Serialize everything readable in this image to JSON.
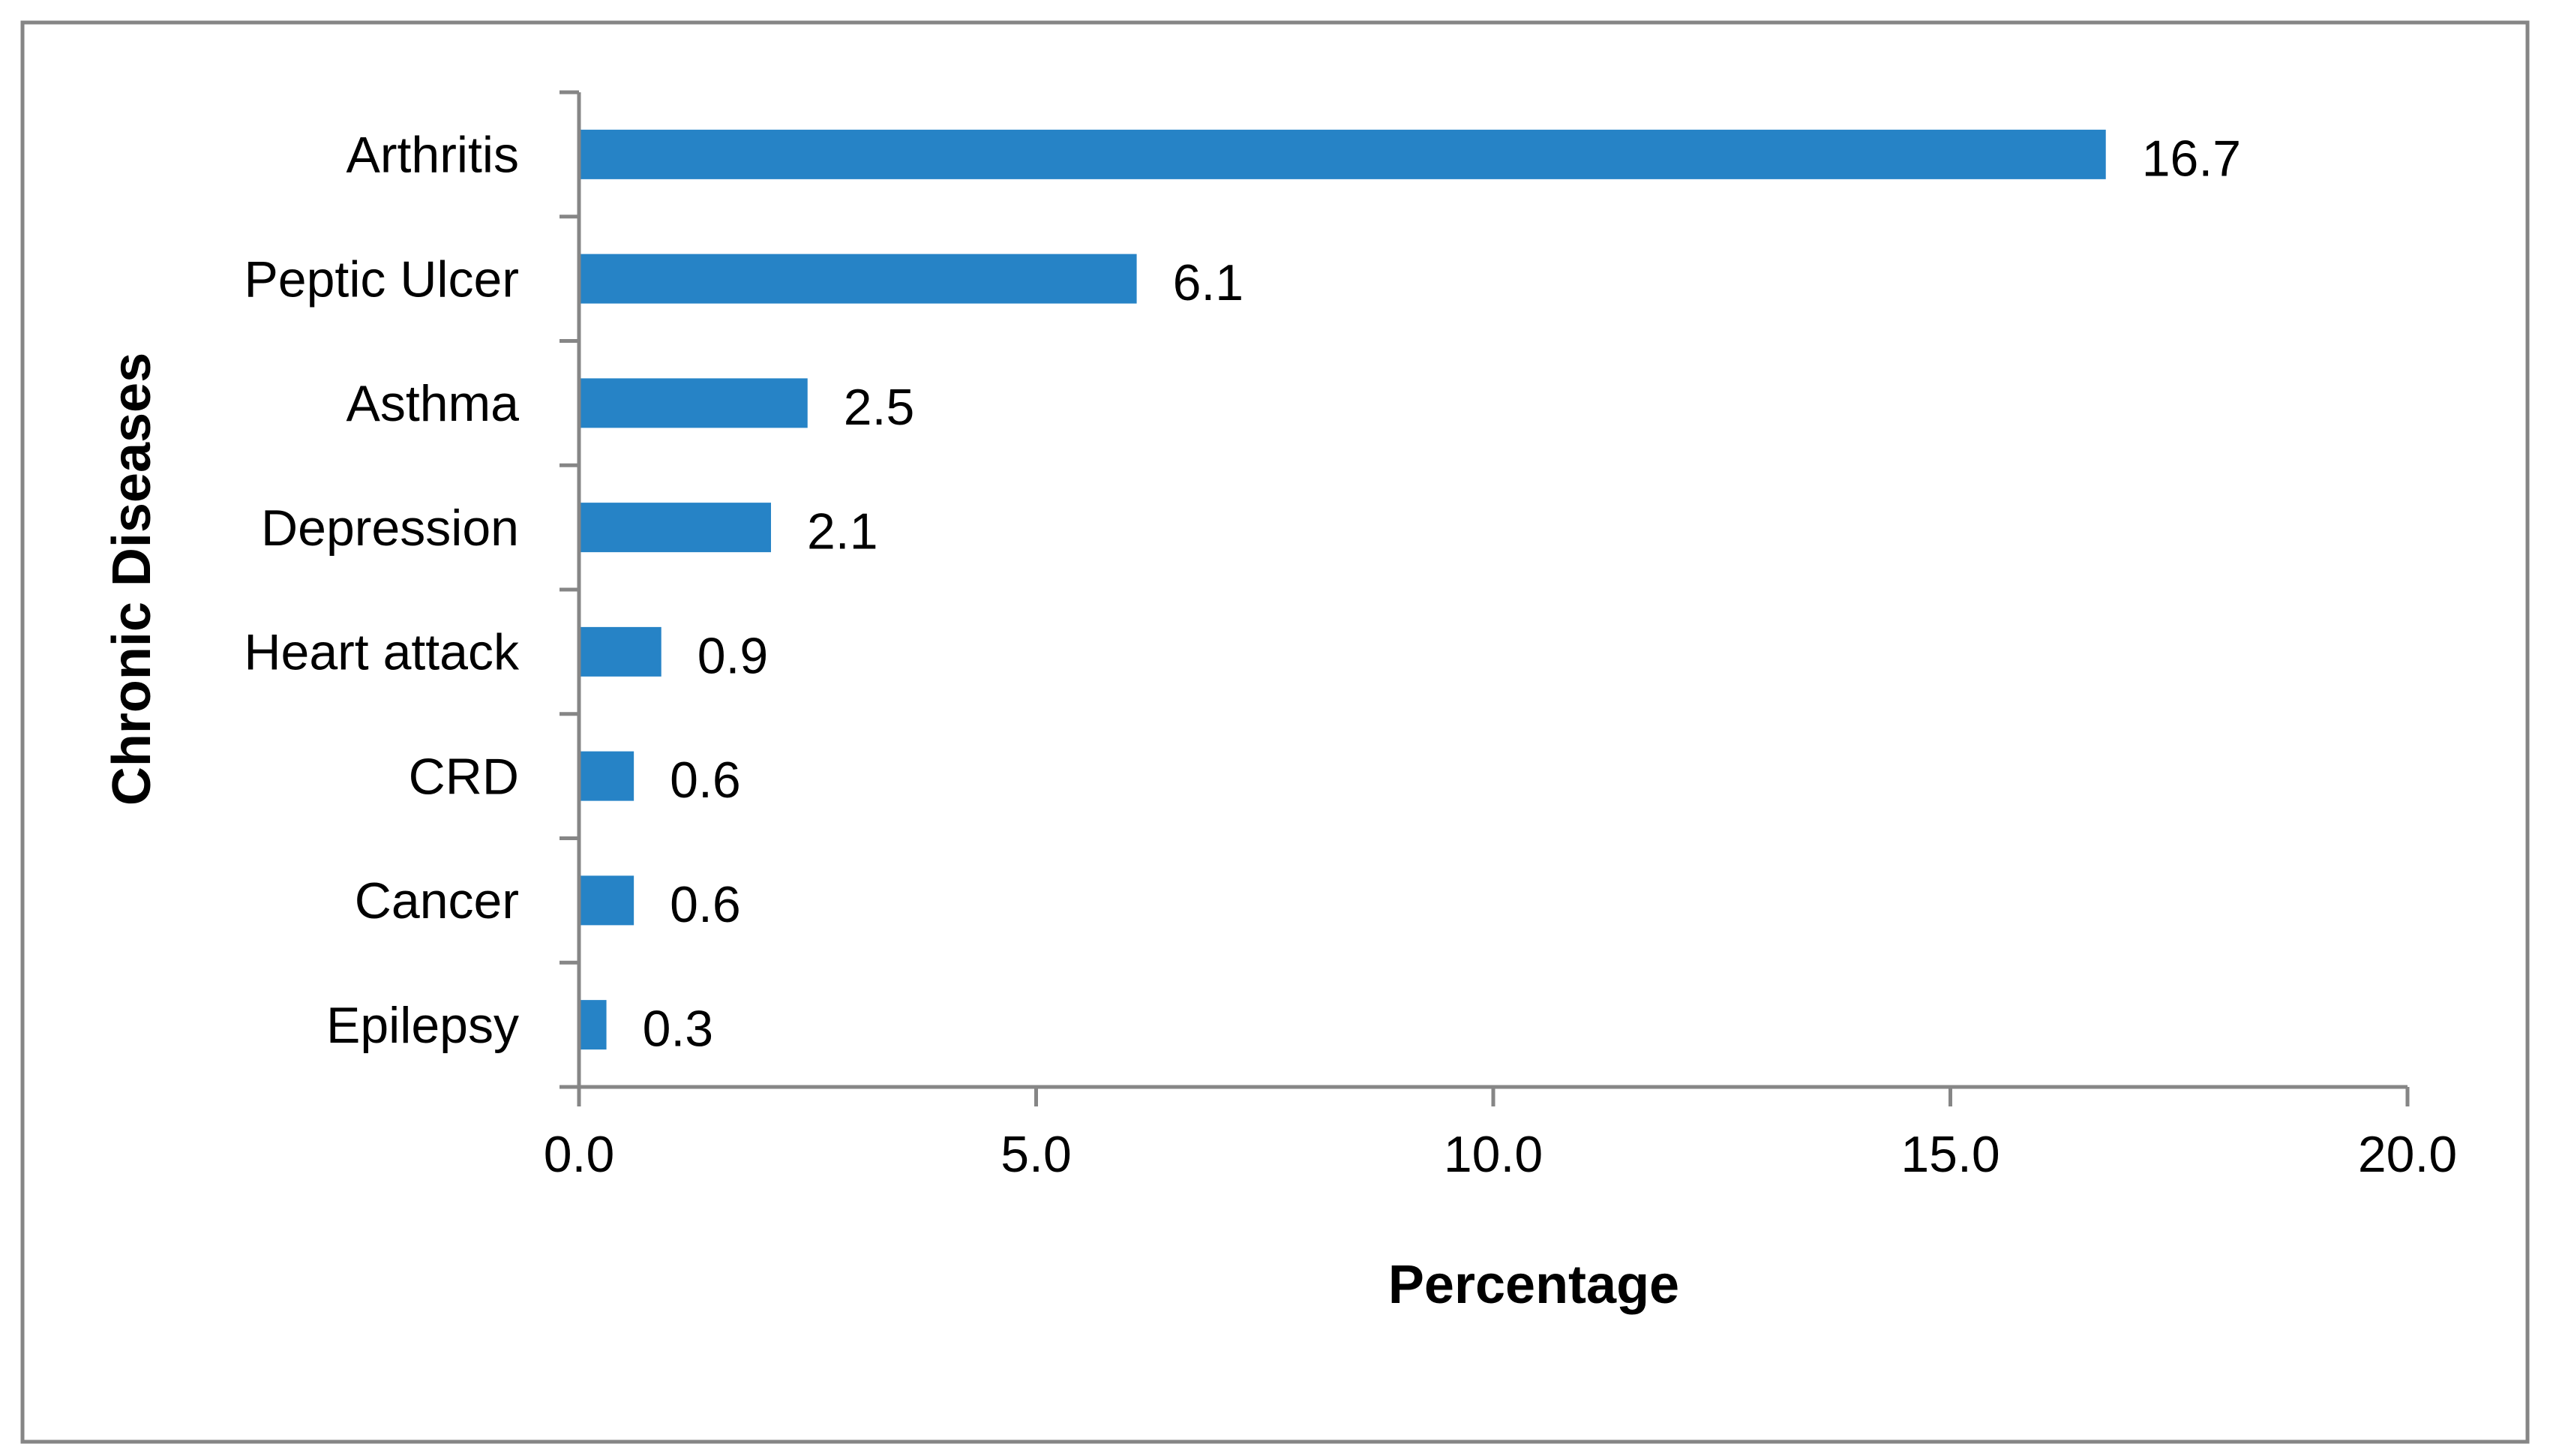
{
  "chart_data": {
    "type": "bar",
    "orientation": "horizontal",
    "title": "",
    "xlabel": "Percentage",
    "ylabel": "Chronic Diseases",
    "categories": [
      "Arthritis",
      "Peptic Ulcer",
      "Asthma",
      "Depression",
      "Heart attack",
      "CRD",
      "Cancer",
      "Epilepsy"
    ],
    "values": [
      16.7,
      6.1,
      2.5,
      2.1,
      0.9,
      0.6,
      0.6,
      0.3
    ],
    "data_labels": [
      "16.7",
      "6.1",
      "2.5",
      "2.1",
      "0.9",
      "0.6",
      "0.6",
      "0.3"
    ],
    "xlim": [
      0,
      20
    ],
    "xticks": [
      0,
      5,
      10,
      15,
      20
    ],
    "xtick_labels": [
      "0.0",
      "5.0",
      "10.0",
      "15.0",
      "20.0"
    ],
    "grid": false,
    "legend": "none",
    "bar_color": "#2683c6",
    "frame_color": "#868686",
    "axis_color": "#868686"
  }
}
